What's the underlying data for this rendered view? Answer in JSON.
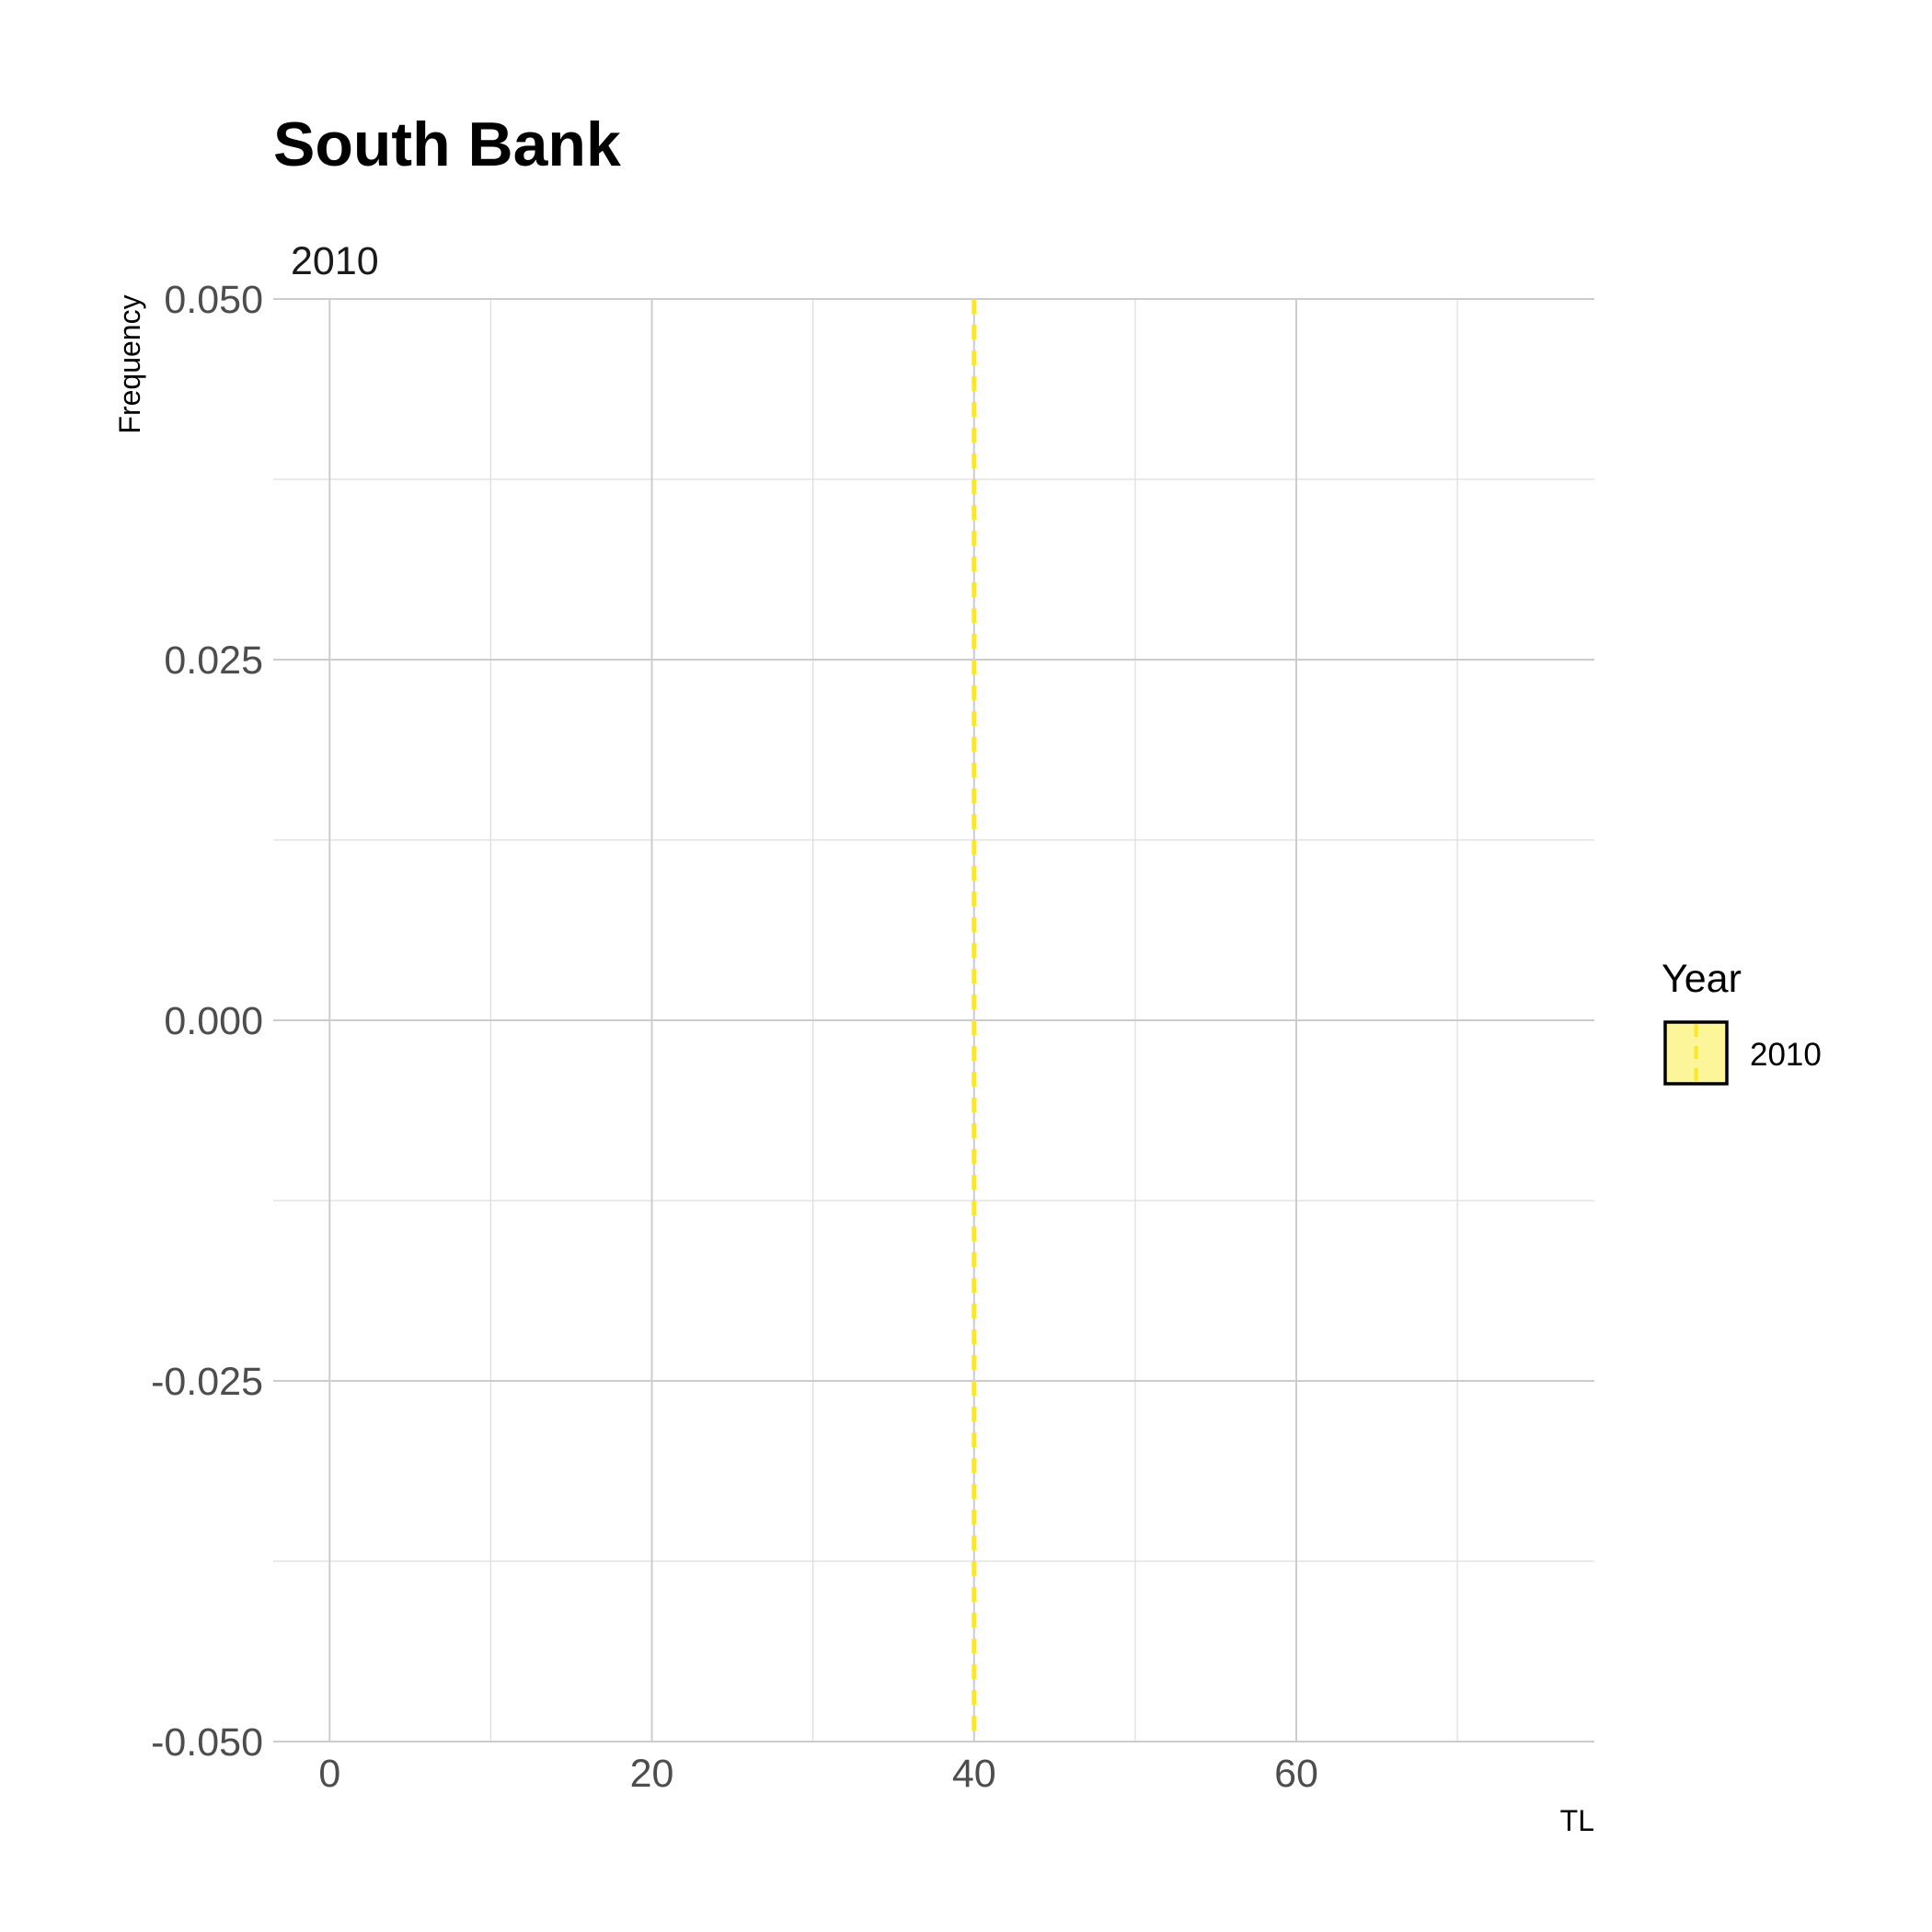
{
  "chart_data": {
    "type": "line",
    "title": "South Bank",
    "facet_label": "2010",
    "xlabel": "TL",
    "ylabel": "Frequency",
    "xlim": [
      -3.5,
      78.5
    ],
    "ylim": [
      -0.05,
      0.05
    ],
    "x_ticks": [
      0,
      20,
      40,
      60
    ],
    "x_tick_labels": [
      "0",
      "20",
      "40",
      "60"
    ],
    "x_minor": [
      10,
      30,
      50,
      70
    ],
    "y_ticks": [
      -0.05,
      -0.025,
      0,
      0.025,
      0.05
    ],
    "y_tick_labels": [
      "-0.050",
      "-0.025",
      "0.000",
      "0.025",
      "0.050"
    ],
    "y_minor": [
      -0.0375,
      -0.0125,
      0.0125,
      0.0375
    ],
    "grid": true,
    "legend": {
      "title": "Year",
      "position": "right",
      "entries": [
        {
          "label": "2010",
          "fill": "#FDF59A",
          "line_color": "#FDE725"
        }
      ]
    },
    "series": [
      {
        "name": "2010",
        "kind": "vline",
        "x": 40,
        "color": "#FDE725",
        "style": "dashed"
      }
    ]
  }
}
